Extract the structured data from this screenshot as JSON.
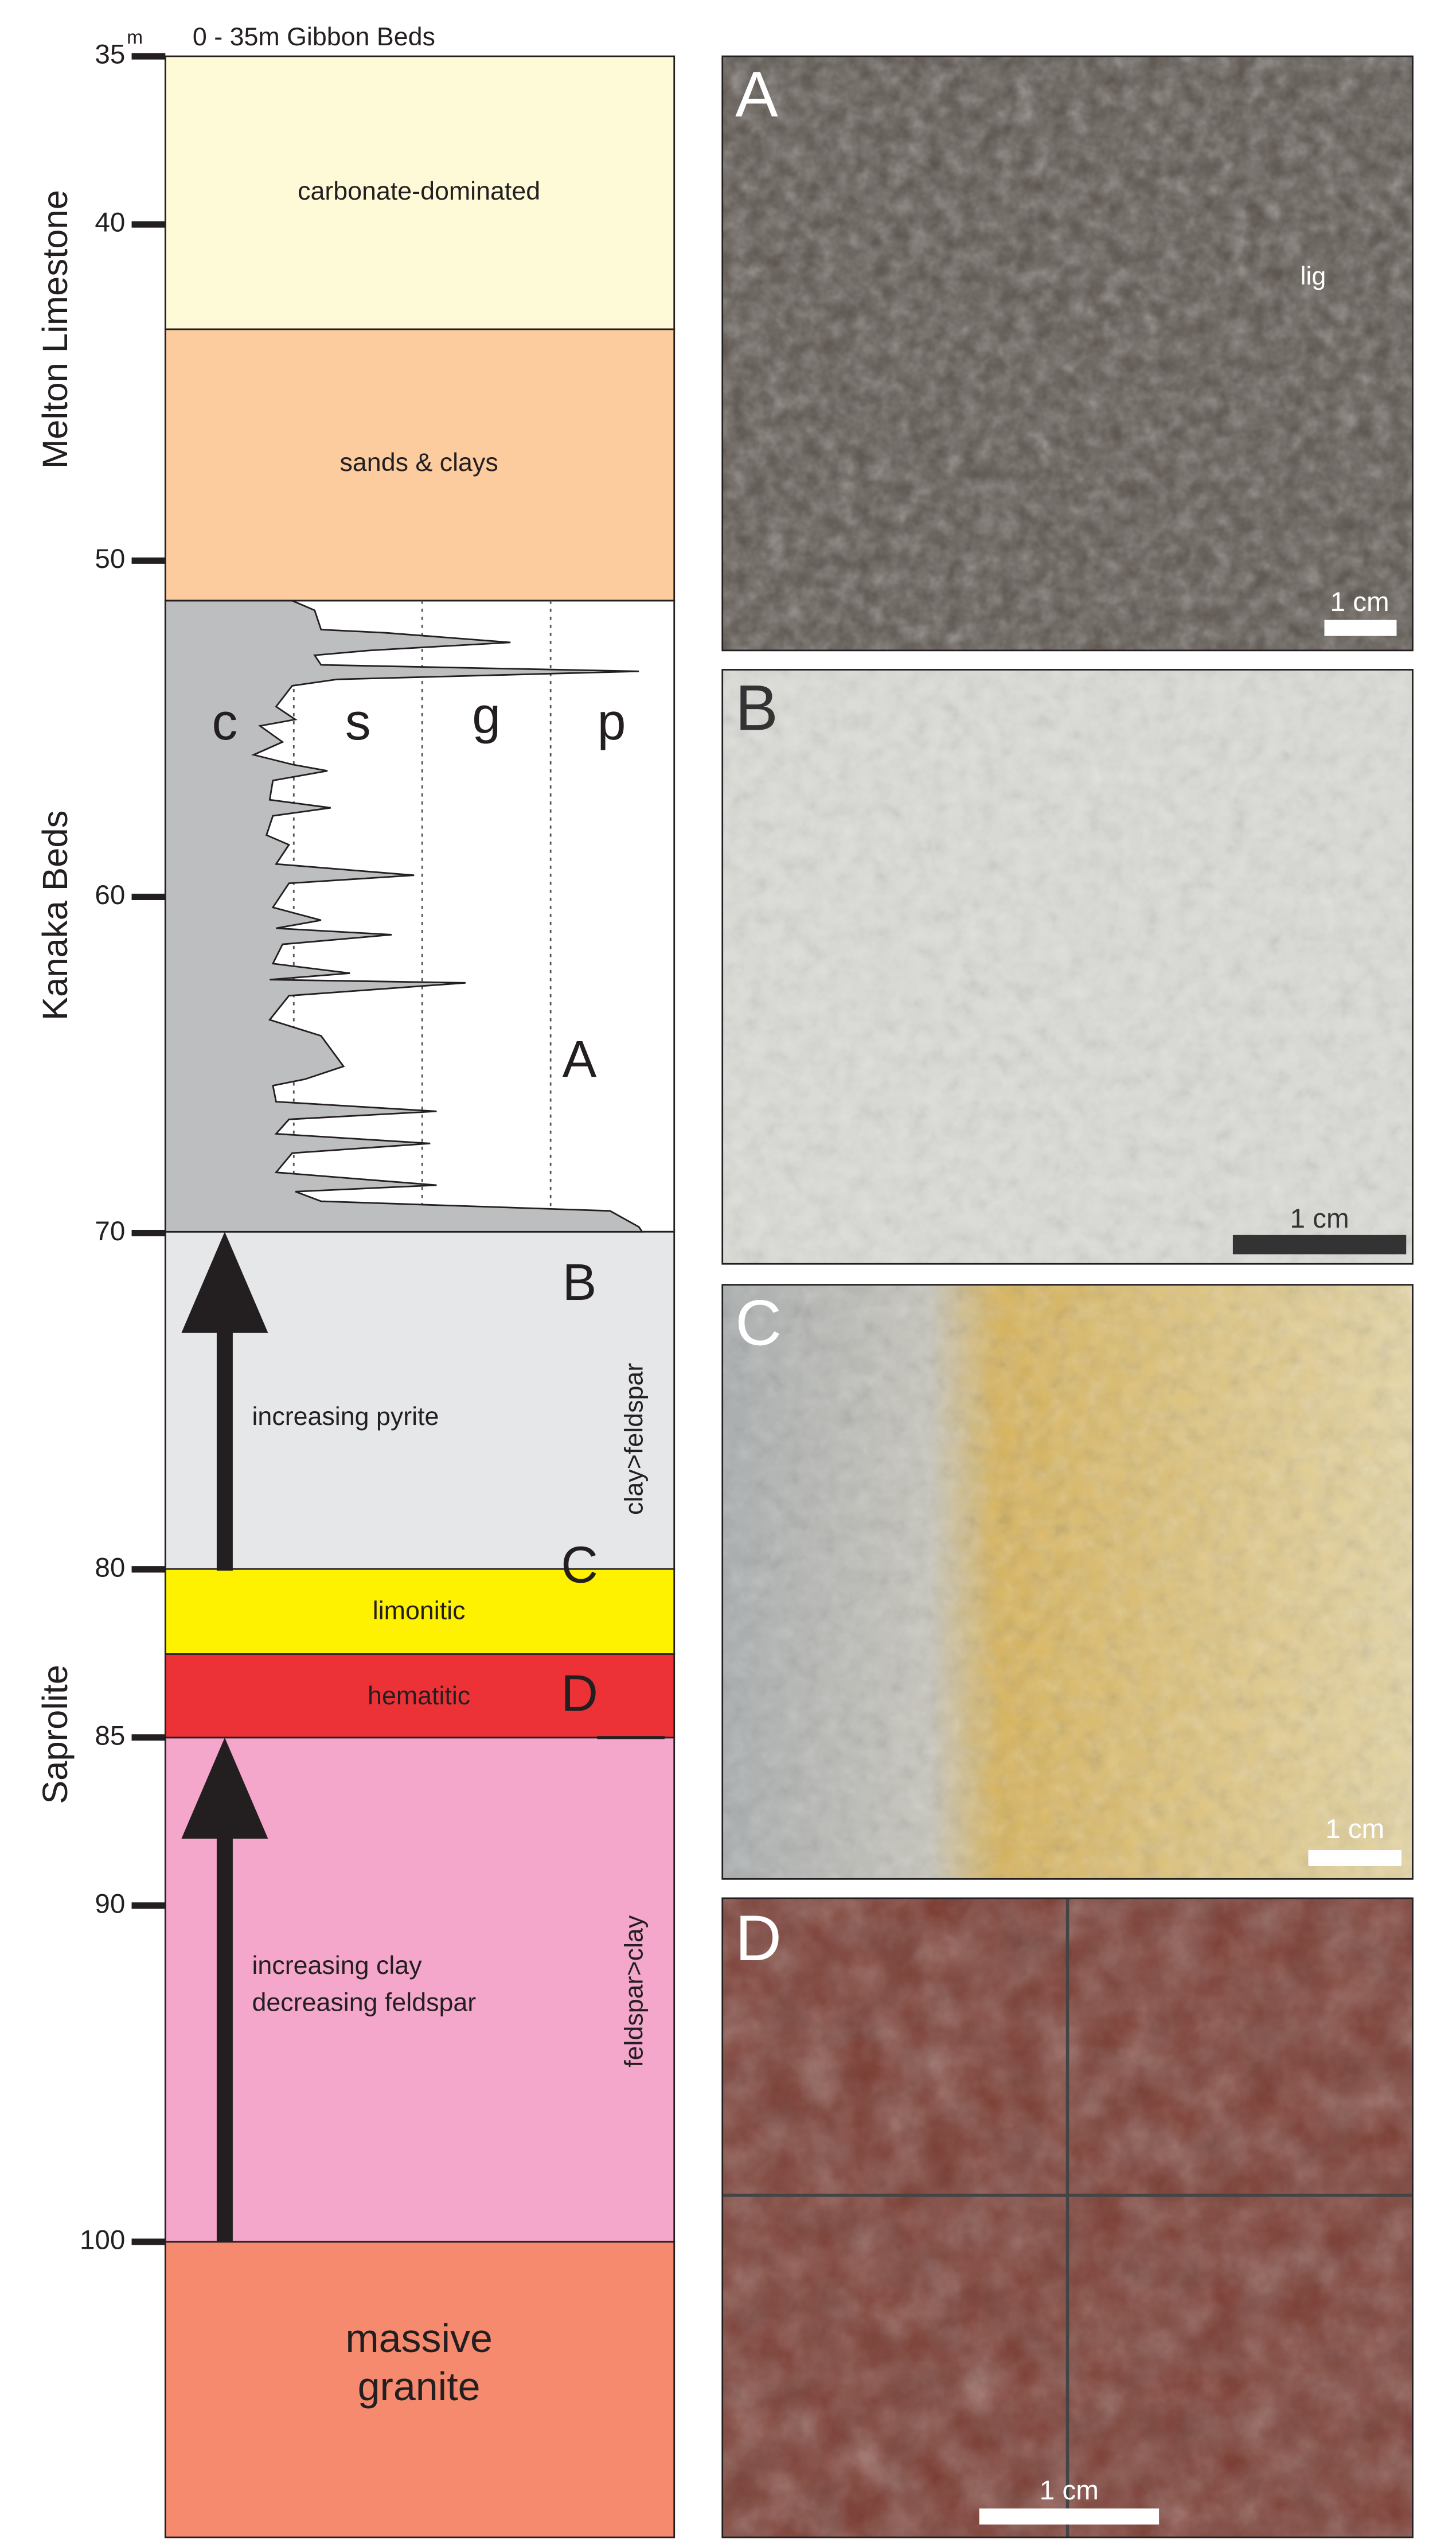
{
  "depth_axis": {
    "unit": "m",
    "note": "0 - 35m Gibbon Beds",
    "ticks": [
      35,
      40,
      50,
      60,
      70,
      80,
      85,
      90,
      100
    ]
  },
  "units": [
    "Melton Limestone",
    "Kanaka Beds",
    "Saprolite"
  ],
  "layers": {
    "carbonate": "carbonate-dominated",
    "sands": "sands & clays",
    "pyrite": "increasing pyrite",
    "limonitic": "limonitic",
    "hematitic": "hematitic",
    "clay": "increasing clay",
    "feldspar": "decreasing feldspar",
    "granite_1": "massive",
    "granite_2": "granite"
  },
  "grain_size": [
    "c",
    "s",
    "g",
    "p"
  ],
  "trends": [
    "clay>feldspar",
    "feldspar>clay"
  ],
  "sample_markers": [
    "A",
    "B",
    "C",
    "D"
  ],
  "photos": [
    {
      "label": "A",
      "annotation": "lig",
      "scale": "1 cm"
    },
    {
      "label": "B",
      "scale": "1 cm"
    },
    {
      "label": "C",
      "scale": "1 cm"
    },
    {
      "label": "D",
      "scale": "1 cm"
    }
  ]
}
